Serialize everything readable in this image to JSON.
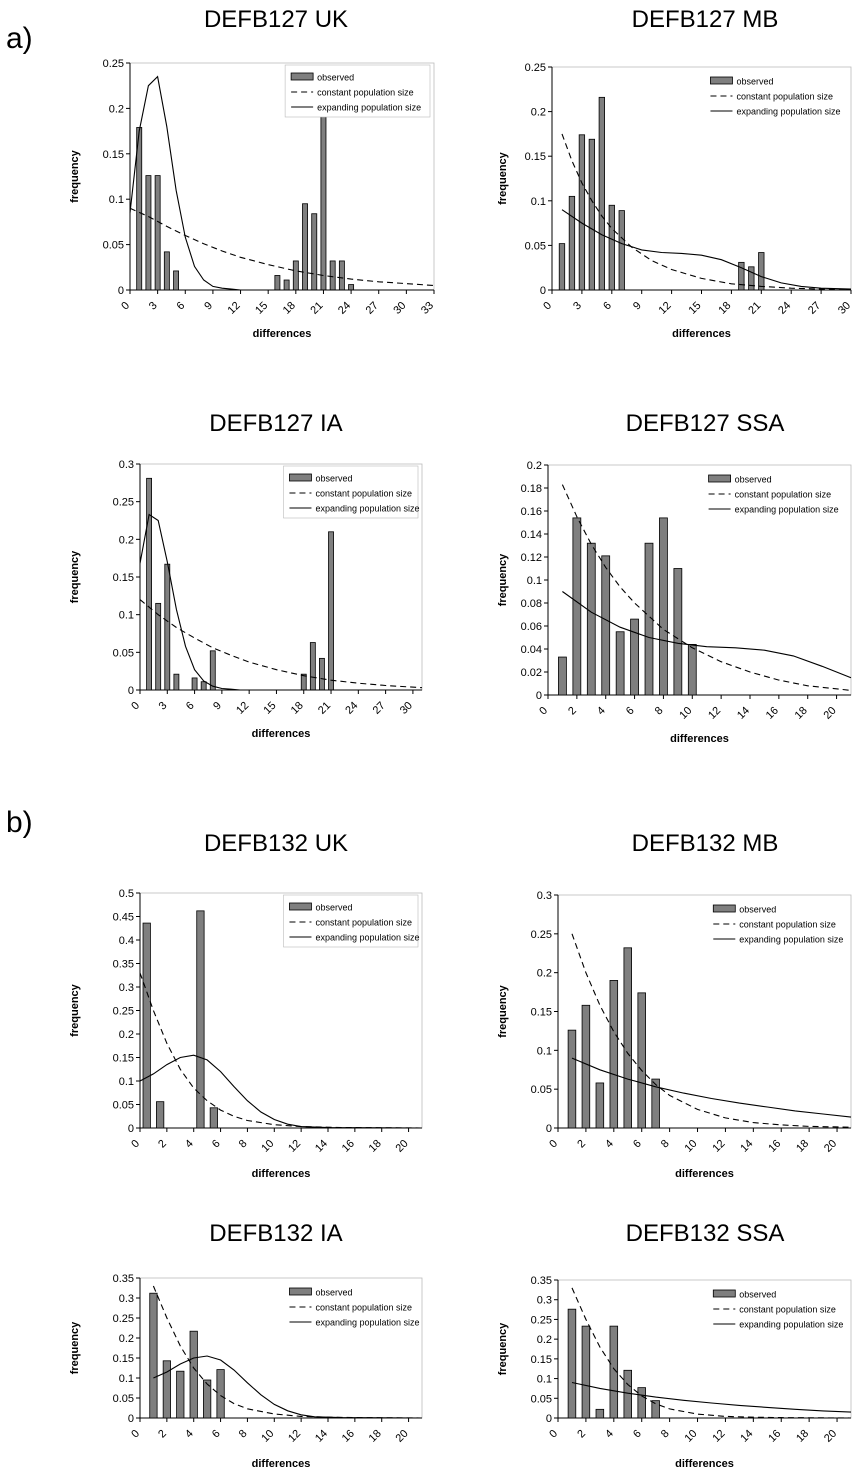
{
  "sections": [
    {
      "label": "a)"
    },
    {
      "label": "b)"
    }
  ],
  "legend_labels": [
    "observed",
    "constant population size",
    "expanding population size"
  ],
  "chart_data": [
    {
      "type": "bar",
      "title": "DEFB127 UK",
      "xlabel": "differences",
      "ylabel": "frequency",
      "ylim": [
        0,
        0.25
      ],
      "yticks": [
        0,
        0.05,
        0.1,
        0.15,
        0.2,
        0.25
      ],
      "xlim": [
        0,
        33
      ],
      "xticks": [
        0,
        3,
        6,
        9,
        12,
        15,
        18,
        21,
        24,
        27,
        30,
        33
      ],
      "legend": "top-right",
      "series": [
        {
          "name": "observed",
          "kind": "bar",
          "x": [
            1,
            2,
            3,
            4,
            5,
            16,
            17,
            18,
            19,
            20,
            21,
            22,
            23,
            24
          ],
          "y": [
            0.179,
            0.126,
            0.126,
            0.042,
            0.021,
            0.016,
            0.011,
            0.032,
            0.095,
            0.084,
            0.2,
            0.032,
            0.032,
            0.006
          ]
        },
        {
          "name": "constant population size",
          "kind": "line",
          "style": "dashed",
          "x": [
            0,
            2,
            4,
            6,
            8,
            10,
            12,
            15,
            18,
            21,
            24,
            27,
            30,
            33
          ],
          "y": [
            0.09,
            0.081,
            0.07,
            0.06,
            0.051,
            0.043,
            0.036,
            0.028,
            0.021,
            0.016,
            0.012,
            0.009,
            0.007,
            0.005
          ]
        },
        {
          "name": "expanding population size",
          "kind": "line",
          "style": "solid",
          "x": [
            0,
            1,
            2,
            3,
            4,
            5,
            6,
            7,
            8,
            9,
            10,
            11,
            12,
            13,
            33
          ],
          "y": [
            0.085,
            0.175,
            0.225,
            0.235,
            0.18,
            0.11,
            0.058,
            0.026,
            0.011,
            0.004,
            0.002,
            0.001,
            0.0,
            0.0,
            0.0
          ]
        }
      ]
    },
    {
      "type": "bar",
      "title": "DEFB127 MB",
      "xlabel": "differences",
      "ylabel": "frequency",
      "ylim": [
        0,
        0.25
      ],
      "yticks": [
        0,
        0.05,
        0.1,
        0.15,
        0.2,
        0.25
      ],
      "xlim": [
        0,
        30
      ],
      "xticks": [
        0,
        3,
        6,
        9,
        12,
        15,
        18,
        21,
        24,
        27,
        30
      ],
      "legend": "top-right",
      "series": [
        {
          "name": "observed",
          "kind": "bar",
          "x": [
            1,
            2,
            3,
            4,
            5,
            6,
            7,
            19,
            20,
            21
          ],
          "y": [
            0.052,
            0.105,
            0.174,
            0.169,
            0.216,
            0.095,
            0.089,
            0.031,
            0.026,
            0.042
          ]
        },
        {
          "name": "constant population size",
          "kind": "line",
          "style": "dashed",
          "x": [
            1,
            2,
            3,
            4,
            5,
            6,
            8,
            10,
            12,
            15,
            18,
            21,
            24,
            27,
            30
          ],
          "y": [
            0.175,
            0.145,
            0.12,
            0.1,
            0.083,
            0.069,
            0.048,
            0.033,
            0.023,
            0.013,
            0.007,
            0.004,
            0.002,
            0.001,
            0.0
          ]
        },
        {
          "name": "expanding population size",
          "kind": "line",
          "style": "solid",
          "x": [
            1,
            3,
            5,
            7,
            9,
            11,
            13,
            15,
            17,
            19,
            21,
            23,
            25,
            27,
            30
          ],
          "y": [
            0.09,
            0.075,
            0.062,
            0.052,
            0.045,
            0.042,
            0.041,
            0.039,
            0.034,
            0.025,
            0.015,
            0.008,
            0.004,
            0.002,
            0.001
          ]
        }
      ]
    },
    {
      "type": "bar",
      "title": "DEFB127 IA",
      "xlabel": "differences",
      "ylabel": "frequency",
      "ylim": [
        0,
        0.3
      ],
      "yticks": [
        0,
        0.05,
        0.1,
        0.15,
        0.2,
        0.25,
        0.3
      ],
      "xlim": [
        0,
        31
      ],
      "xticks": [
        0,
        3,
        6,
        9,
        12,
        15,
        18,
        21,
        24,
        27,
        30
      ],
      "legend": "top-right",
      "series": [
        {
          "name": "observed",
          "kind": "bar",
          "x": [
            1,
            2,
            3,
            4,
            6,
            7,
            8,
            18,
            19,
            20,
            21
          ],
          "y": [
            0.281,
            0.115,
            0.167,
            0.021,
            0.016,
            0.011,
            0.052,
            0.021,
            0.063,
            0.042,
            0.21
          ]
        },
        {
          "name": "constant population size",
          "kind": "line",
          "style": "dashed",
          "x": [
            0,
            2,
            4,
            6,
            8,
            10,
            12,
            15,
            18,
            21,
            24,
            27,
            31
          ],
          "y": [
            0.12,
            0.1,
            0.083,
            0.069,
            0.056,
            0.046,
            0.037,
            0.027,
            0.019,
            0.013,
            0.009,
            0.006,
            0.003
          ]
        },
        {
          "name": "expanding population size",
          "kind": "line",
          "style": "solid",
          "x": [
            0,
            1,
            2,
            3,
            4,
            5,
            6,
            7,
            8,
            9,
            10,
            11,
            12,
            31
          ],
          "y": [
            0.168,
            0.233,
            0.225,
            0.17,
            0.107,
            0.058,
            0.027,
            0.012,
            0.005,
            0.002,
            0.001,
            0.0,
            0.0,
            0.0
          ]
        }
      ]
    },
    {
      "type": "bar",
      "title": "DEFB127 SSA",
      "xlabel": "differences",
      "ylabel": "frequency",
      "ylim": [
        0,
        0.2
      ],
      "yticks": [
        0,
        0.02,
        0.04,
        0.06,
        0.08,
        0.1,
        0.12,
        0.14,
        0.16,
        0.18,
        0.2
      ],
      "xlim": [
        0,
        21
      ],
      "xticks": [
        0,
        2,
        4,
        6,
        8,
        10,
        12,
        14,
        16,
        18,
        20
      ],
      "legend": "top-right",
      "series": [
        {
          "name": "observed",
          "kind": "bar",
          "x": [
            1,
            2,
            3,
            4,
            5,
            6,
            7,
            8,
            9,
            10
          ],
          "y": [
            0.033,
            0.154,
            0.132,
            0.121,
            0.055,
            0.066,
            0.132,
            0.154,
            0.11,
            0.044
          ]
        },
        {
          "name": "constant population size",
          "kind": "line",
          "style": "dashed",
          "x": [
            1,
            2,
            3,
            4,
            5,
            6,
            8,
            10,
            12,
            14,
            16,
            18,
            21
          ],
          "y": [
            0.183,
            0.155,
            0.131,
            0.111,
            0.094,
            0.08,
            0.057,
            0.041,
            0.029,
            0.02,
            0.013,
            0.008,
            0.004
          ]
        },
        {
          "name": "expanding population size",
          "kind": "line",
          "style": "solid",
          "x": [
            1,
            3,
            5,
            7,
            9,
            11,
            13,
            15,
            17,
            19,
            21
          ],
          "y": [
            0.09,
            0.072,
            0.059,
            0.05,
            0.045,
            0.042,
            0.041,
            0.039,
            0.034,
            0.025,
            0.015
          ]
        }
      ]
    },
    {
      "type": "bar",
      "title": "DEFB132 UK",
      "xlabel": "differences",
      "ylabel": "frequency",
      "ylim": [
        0,
        0.5
      ],
      "yticks": [
        0,
        0.05,
        0.1,
        0.15,
        0.2,
        0.25,
        0.3,
        0.35,
        0.4,
        0.45,
        0.5
      ],
      "xlim": [
        0,
        21
      ],
      "xticks": [
        0,
        2,
        4,
        6,
        8,
        10,
        12,
        14,
        16,
        18,
        20
      ],
      "legend": "top-right",
      "series": [
        {
          "name": "observed",
          "kind": "bar",
          "x": [
            0.5,
            1.5,
            4.5,
            5.5
          ],
          "y": [
            0.436,
            0.056,
            0.462,
            0.043
          ]
        },
        {
          "name": "constant population size",
          "kind": "line",
          "style": "dashed",
          "x": [
            0,
            1,
            2,
            3,
            4,
            5,
            6,
            7,
            8,
            10,
            12,
            15,
            21
          ],
          "y": [
            0.33,
            0.25,
            0.18,
            0.125,
            0.085,
            0.058,
            0.038,
            0.025,
            0.016,
            0.007,
            0.003,
            0.001,
            0.0
          ]
        },
        {
          "name": "expanding population size",
          "kind": "line",
          "style": "solid",
          "x": [
            0,
            1,
            2,
            3,
            4,
            5,
            6,
            7,
            8,
            9,
            10,
            11,
            12,
            14,
            21
          ],
          "y": [
            0.1,
            0.115,
            0.135,
            0.15,
            0.155,
            0.145,
            0.12,
            0.088,
            0.058,
            0.034,
            0.018,
            0.008,
            0.003,
            0.001,
            0.0
          ]
        }
      ]
    },
    {
      "type": "bar",
      "title": "DEFB132 MB",
      "xlabel": "differences",
      "ylabel": "frequency",
      "ylim": [
        0,
        0.3
      ],
      "yticks": [
        0,
        0.05,
        0.1,
        0.15,
        0.2,
        0.25,
        0.3
      ],
      "xlim": [
        0,
        21
      ],
      "xticks": [
        0,
        2,
        4,
        6,
        8,
        10,
        12,
        14,
        16,
        18,
        20
      ],
      "legend": "top-right",
      "series": [
        {
          "name": "observed",
          "kind": "bar",
          "x": [
            1,
            2,
            3,
            4,
            5,
            6,
            7
          ],
          "y": [
            0.126,
            0.158,
            0.058,
            0.19,
            0.232,
            0.174,
            0.063
          ]
        },
        {
          "name": "constant population size",
          "kind": "line",
          "style": "dashed",
          "x": [
            1,
            2,
            3,
            4,
            5,
            6,
            7,
            8,
            10,
            12,
            14,
            16,
            18,
            21
          ],
          "y": [
            0.25,
            0.2,
            0.158,
            0.124,
            0.096,
            0.074,
            0.056,
            0.042,
            0.024,
            0.013,
            0.007,
            0.004,
            0.002,
            0.001
          ]
        },
        {
          "name": "expanding population size",
          "kind": "line",
          "style": "solid",
          "x": [
            1,
            3,
            5,
            7,
            9,
            11,
            13,
            15,
            17,
            19,
            21
          ],
          "y": [
            0.09,
            0.075,
            0.063,
            0.053,
            0.045,
            0.038,
            0.032,
            0.027,
            0.022,
            0.018,
            0.014
          ]
        }
      ]
    },
    {
      "type": "bar",
      "title": "DEFB132 IA",
      "xlabel": "differences",
      "ylabel": "frequency",
      "ylim": [
        0,
        0.35
      ],
      "yticks": [
        0,
        0.05,
        0.1,
        0.15,
        0.2,
        0.25,
        0.3,
        0.35
      ],
      "xlim": [
        0,
        21
      ],
      "xticks": [
        0,
        2,
        4,
        6,
        8,
        10,
        12,
        14,
        16,
        18,
        20
      ],
      "legend": "top-right",
      "series": [
        {
          "name": "observed",
          "kind": "bar",
          "x": [
            1,
            2,
            3,
            4,
            5,
            6
          ],
          "y": [
            0.312,
            0.143,
            0.117,
            0.217,
            0.095,
            0.121
          ]
        },
        {
          "name": "constant population size",
          "kind": "line",
          "style": "dashed",
          "x": [
            1,
            2,
            3,
            4,
            5,
            6,
            7,
            8,
            10,
            12,
            14,
            16,
            21
          ],
          "y": [
            0.33,
            0.25,
            0.18,
            0.125,
            0.085,
            0.056,
            0.036,
            0.023,
            0.01,
            0.004,
            0.002,
            0.001,
            0.0
          ]
        },
        {
          "name": "expanding population size",
          "kind": "line",
          "style": "solid",
          "x": [
            1,
            2,
            3,
            4,
            5,
            6,
            7,
            8,
            9,
            10,
            11,
            12,
            13,
            15,
            21
          ],
          "y": [
            0.1,
            0.115,
            0.135,
            0.15,
            0.155,
            0.145,
            0.12,
            0.088,
            0.058,
            0.034,
            0.018,
            0.008,
            0.003,
            0.001,
            0.0
          ]
        }
      ]
    },
    {
      "type": "bar",
      "title": "DEFB132 SSA",
      "xlabel": "differences",
      "ylabel": "frequency",
      "ylim": [
        0,
        0.35
      ],
      "yticks": [
        0,
        0.05,
        0.1,
        0.15,
        0.2,
        0.25,
        0.3,
        0.35
      ],
      "xlim": [
        0,
        21
      ],
      "xticks": [
        0,
        2,
        4,
        6,
        8,
        10,
        12,
        14,
        16,
        18,
        20
      ],
      "legend": "top-right",
      "series": [
        {
          "name": "observed",
          "kind": "bar",
          "x": [
            1,
            2,
            3,
            4,
            5,
            6,
            7
          ],
          "y": [
            0.276,
            0.233,
            0.022,
            0.233,
            0.121,
            0.077,
            0.044
          ]
        },
        {
          "name": "constant population size",
          "kind": "line",
          "style": "dashed",
          "x": [
            1,
            2,
            3,
            4,
            5,
            6,
            7,
            8,
            10,
            12,
            14,
            16,
            21
          ],
          "y": [
            0.33,
            0.25,
            0.18,
            0.125,
            0.085,
            0.056,
            0.036,
            0.023,
            0.01,
            0.004,
            0.002,
            0.001,
            0.0
          ]
        },
        {
          "name": "expanding population size",
          "kind": "line",
          "style": "solid",
          "x": [
            1,
            3,
            5,
            7,
            9,
            11,
            13,
            15,
            17,
            19,
            21
          ],
          "y": [
            0.09,
            0.075,
            0.063,
            0.053,
            0.045,
            0.038,
            0.032,
            0.027,
            0.022,
            0.018,
            0.015
          ]
        }
      ]
    }
  ]
}
